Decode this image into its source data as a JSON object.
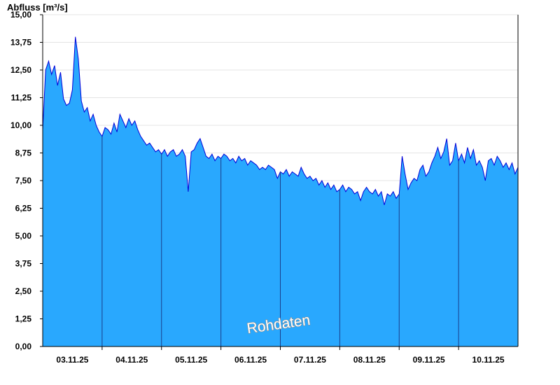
{
  "chart_data": {
    "type": "area",
    "ylabel": "Abfluss [m³/s]",
    "ylim": [
      0,
      15
    ],
    "y_ticks": [
      "0,00",
      "1,25",
      "2,50",
      "3,75",
      "5,00",
      "6,25",
      "7,50",
      "8,75",
      "10,00",
      "11,25",
      "12,50",
      "13,75",
      "15,00"
    ],
    "x_tick_labels": [
      "03.11.25",
      "04.11.25",
      "05.11.25",
      "06.11.25",
      "07.11.25",
      "08.11.25",
      "09.11.25",
      "10.11.25"
    ],
    "x_range_days": [
      2.0,
      10.0
    ],
    "grid": "horizontal",
    "watermark": "Rohdaten",
    "colors": {
      "fill": "#29a8fe",
      "line": "#0000d8",
      "grid": "#e4e4e4",
      "day_line": "#1a3f8c"
    },
    "series": [
      {
        "values": [
          [
            2.0,
            9.8
          ],
          [
            2.05,
            12.5
          ],
          [
            2.1,
            12.9
          ],
          [
            2.15,
            12.3
          ],
          [
            2.2,
            12.7
          ],
          [
            2.25,
            11.8
          ],
          [
            2.3,
            12.4
          ],
          [
            2.35,
            11.2
          ],
          [
            2.4,
            10.9
          ],
          [
            2.45,
            11.0
          ],
          [
            2.5,
            11.6
          ],
          [
            2.55,
            14.0
          ],
          [
            2.6,
            13.0
          ],
          [
            2.65,
            11.1
          ],
          [
            2.7,
            10.6
          ],
          [
            2.75,
            10.8
          ],
          [
            2.8,
            10.2
          ],
          [
            2.85,
            10.5
          ],
          [
            2.9,
            10.0
          ],
          [
            2.95,
            9.7
          ],
          [
            3.0,
            9.5
          ],
          [
            3.05,
            9.9
          ],
          [
            3.1,
            9.8
          ],
          [
            3.15,
            9.6
          ],
          [
            3.2,
            10.1
          ],
          [
            3.25,
            9.7
          ],
          [
            3.3,
            10.5
          ],
          [
            3.35,
            10.2
          ],
          [
            3.4,
            9.9
          ],
          [
            3.45,
            10.3
          ],
          [
            3.5,
            10.0
          ],
          [
            3.55,
            10.2
          ],
          [
            3.6,
            9.8
          ],
          [
            3.65,
            9.5
          ],
          [
            3.7,
            9.3
          ],
          [
            3.75,
            9.1
          ],
          [
            3.8,
            9.2
          ],
          [
            3.85,
            9.0
          ],
          [
            3.9,
            8.8
          ],
          [
            3.95,
            8.9
          ],
          [
            4.0,
            8.7
          ],
          [
            4.05,
            8.9
          ],
          [
            4.1,
            8.6
          ],
          [
            4.15,
            8.8
          ],
          [
            4.2,
            8.9
          ],
          [
            4.25,
            8.6
          ],
          [
            4.3,
            8.7
          ],
          [
            4.35,
            8.9
          ],
          [
            4.4,
            8.6
          ],
          [
            4.45,
            7.0
          ],
          [
            4.5,
            8.8
          ],
          [
            4.55,
            8.9
          ],
          [
            4.6,
            9.2
          ],
          [
            4.65,
            9.4
          ],
          [
            4.7,
            9.0
          ],
          [
            4.75,
            8.6
          ],
          [
            4.8,
            8.5
          ],
          [
            4.85,
            8.7
          ],
          [
            4.9,
            8.4
          ],
          [
            4.95,
            8.6
          ],
          [
            5.0,
            8.5
          ],
          [
            5.05,
            8.7
          ],
          [
            5.1,
            8.6
          ],
          [
            5.15,
            8.4
          ],
          [
            5.2,
            8.5
          ],
          [
            5.25,
            8.3
          ],
          [
            5.3,
            8.6
          ],
          [
            5.35,
            8.4
          ],
          [
            5.4,
            8.5
          ],
          [
            5.45,
            8.2
          ],
          [
            5.5,
            8.4
          ],
          [
            5.55,
            8.3
          ],
          [
            5.6,
            8.2
          ],
          [
            5.65,
            8.0
          ],
          [
            5.7,
            8.1
          ],
          [
            5.75,
            8.0
          ],
          [
            5.8,
            8.2
          ],
          [
            5.85,
            8.1
          ],
          [
            5.9,
            8.0
          ],
          [
            5.95,
            7.6
          ],
          [
            6.0,
            7.9
          ],
          [
            6.05,
            7.8
          ],
          [
            6.1,
            8.0
          ],
          [
            6.15,
            7.7
          ],
          [
            6.2,
            7.9
          ],
          [
            6.25,
            7.8
          ],
          [
            6.3,
            7.7
          ],
          [
            6.35,
            8.1
          ],
          [
            6.4,
            7.8
          ],
          [
            6.45,
            7.6
          ],
          [
            6.5,
            7.7
          ],
          [
            6.55,
            7.5
          ],
          [
            6.6,
            7.6
          ],
          [
            6.65,
            7.3
          ],
          [
            6.7,
            7.5
          ],
          [
            6.75,
            7.2
          ],
          [
            6.8,
            7.4
          ],
          [
            6.85,
            7.1
          ],
          [
            6.9,
            7.3
          ],
          [
            6.95,
            7.0
          ],
          [
            7.0,
            7.1
          ],
          [
            7.05,
            7.3
          ],
          [
            7.1,
            7.0
          ],
          [
            7.15,
            7.2
          ],
          [
            7.2,
            7.1
          ],
          [
            7.25,
            6.9
          ],
          [
            7.3,
            7.0
          ],
          [
            7.35,
            6.6
          ],
          [
            7.4,
            7.0
          ],
          [
            7.45,
            7.2
          ],
          [
            7.5,
            7.0
          ],
          [
            7.55,
            6.9
          ],
          [
            7.6,
            7.1
          ],
          [
            7.65,
            6.8
          ],
          [
            7.7,
            7.0
          ],
          [
            7.75,
            6.4
          ],
          [
            7.8,
            6.9
          ],
          [
            7.85,
            6.8
          ],
          [
            7.9,
            7.0
          ],
          [
            7.95,
            6.7
          ],
          [
            8.0,
            6.9
          ],
          [
            8.05,
            8.6
          ],
          [
            8.1,
            7.8
          ],
          [
            8.15,
            7.1
          ],
          [
            8.2,
            7.4
          ],
          [
            8.25,
            7.6
          ],
          [
            8.3,
            7.5
          ],
          [
            8.35,
            8.0
          ],
          [
            8.4,
            8.2
          ],
          [
            8.45,
            7.7
          ],
          [
            8.5,
            7.9
          ],
          [
            8.55,
            8.3
          ],
          [
            8.6,
            8.6
          ],
          [
            8.65,
            9.0
          ],
          [
            8.7,
            8.5
          ],
          [
            8.75,
            8.8
          ],
          [
            8.8,
            9.4
          ],
          [
            8.85,
            8.2
          ],
          [
            8.9,
            8.4
          ],
          [
            8.95,
            9.2
          ],
          [
            9.0,
            8.4
          ],
          [
            9.05,
            8.7
          ],
          [
            9.1,
            8.3
          ],
          [
            9.15,
            9.0
          ],
          [
            9.2,
            8.5
          ],
          [
            9.25,
            8.9
          ],
          [
            9.3,
            8.2
          ],
          [
            9.35,
            8.4
          ],
          [
            9.4,
            8.1
          ],
          [
            9.45,
            7.5
          ],
          [
            9.5,
            8.4
          ],
          [
            9.55,
            8.5
          ],
          [
            9.6,
            8.2
          ],
          [
            9.65,
            8.6
          ],
          [
            9.7,
            8.4
          ],
          [
            9.75,
            8.1
          ],
          [
            9.8,
            8.3
          ],
          [
            9.85,
            8.0
          ],
          [
            9.9,
            8.3
          ],
          [
            9.95,
            7.8
          ],
          [
            10.0,
            8.1
          ]
        ]
      }
    ]
  }
}
